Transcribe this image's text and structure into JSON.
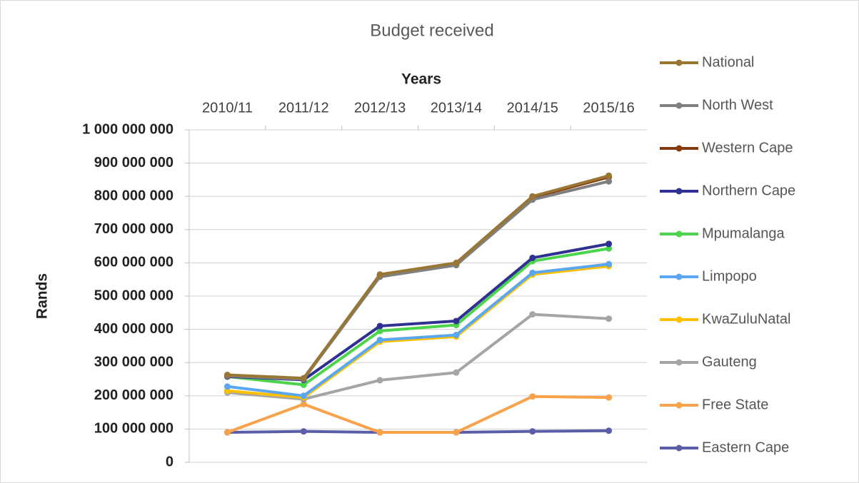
{
  "chart_data": {
    "type": "line",
    "title": "Budget received",
    "x_label": "Years",
    "y_label": "Rands",
    "categories": [
      "2010/11",
      "2011/12",
      "2012/13",
      "2013/14",
      "2014/15",
      "2015/16"
    ],
    "ylim": [
      0,
      1000000000
    ],
    "yticks": [
      0,
      {
        "value": 100000000,
        "label": "100 000 000"
      },
      {
        "value": 200000000,
        "label": "200 000 000"
      },
      {
        "value": 300000000,
        "label": "300 000 000"
      },
      {
        "value": 400000000,
        "label": "400 000 000"
      },
      {
        "value": 500000000,
        "label": "500 000 000"
      },
      {
        "value": 600000000,
        "label": "600 000 000"
      },
      {
        "value": 700000000,
        "label": "700 000 000"
      },
      {
        "value": 800000000,
        "label": "800 000 000"
      },
      {
        "value": 900000000,
        "label": "900 000 000"
      },
      {
        "value": 1000000000,
        "label": "1 000 000 000"
      }
    ],
    "grid": true,
    "legend": "right",
    "series": [
      {
        "name": "National",
        "color": "#9a7635",
        "values": [
          263000000,
          253000000,
          565000000,
          600000000,
          800000000,
          862000000
        ]
      },
      {
        "name": "North West",
        "color": "#7f7f7f",
        "values": [
          260000000,
          250000000,
          558000000,
          593000000,
          790000000,
          845000000
        ]
      },
      {
        "name": "Western Cape",
        "color": "#843c0c",
        "values": [
          262000000,
          252000000,
          563000000,
          598000000,
          797000000,
          858000000
        ]
      },
      {
        "name": "Northern Cape",
        "color": "#2e3192",
        "values": [
          258000000,
          248000000,
          410000000,
          425000000,
          615000000,
          657000000
        ]
      },
      {
        "name": "Mpumalanga",
        "color": "#4cd44c",
        "values": [
          258000000,
          233000000,
          395000000,
          413000000,
          605000000,
          643000000
        ]
      },
      {
        "name": "Limpopo",
        "color": "#5aa7f0",
        "values": [
          228000000,
          200000000,
          368000000,
          383000000,
          570000000,
          596000000
        ]
      },
      {
        "name": "KwaZuluNatal",
        "color": "#ffc000",
        "values": [
          215000000,
          195000000,
          363000000,
          378000000,
          565000000,
          590000000
        ]
      },
      {
        "name": "Gauteng",
        "color": "#a5a5a5",
        "values": [
          210000000,
          190000000,
          247000000,
          270000000,
          445000000,
          432000000
        ]
      },
      {
        "name": "Free State",
        "color": "#f8a34c",
        "values": [
          90000000,
          175000000,
          90000000,
          90000000,
          198000000,
          195000000
        ]
      },
      {
        "name": "Eastern Cape",
        "color": "#5b5ea6",
        "values": [
          90000000,
          93000000,
          90000000,
          90000000,
          93000000,
          95000000
        ]
      }
    ]
  }
}
